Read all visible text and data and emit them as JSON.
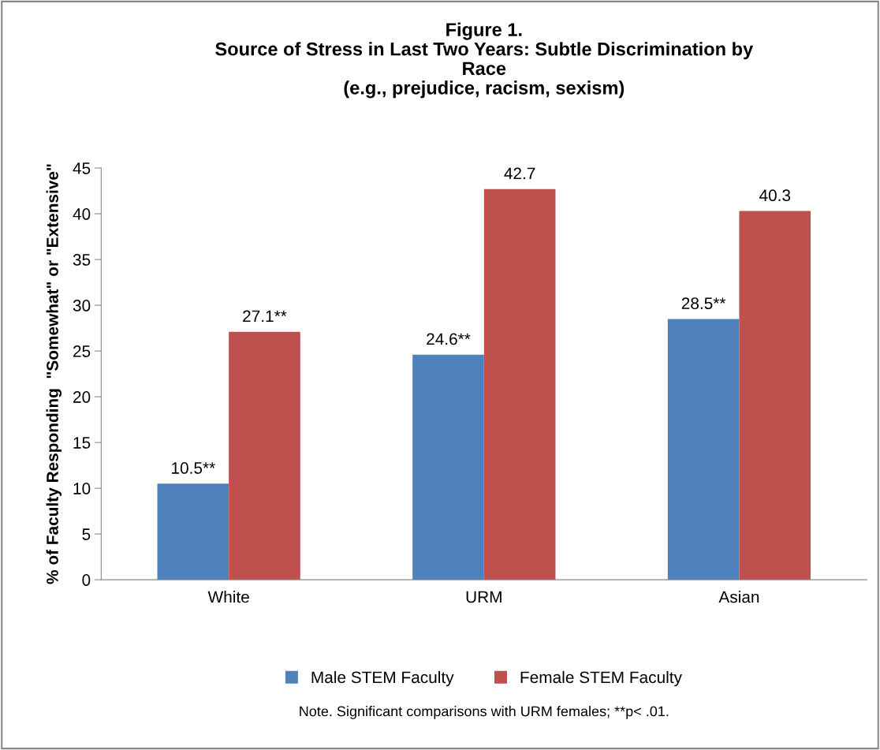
{
  "chart_data": {
    "type": "bar",
    "title": "Figure 1.\nSource of Stress in Last Two Years: Subtle Discrimination by\nRace\n(e.g., prejudice, racism, sexism)",
    "ylabel": "% of Faculty Responding  \"Somewhat\" or \"Extensive\"",
    "categories": [
      "White",
      "URM",
      "Asian"
    ],
    "series": [
      {
        "name": "Male STEM Faculty",
        "color": "#4f81bd",
        "values": [
          10.5,
          24.6,
          28.5
        ],
        "value_labels": [
          "10.5**",
          "24.6**",
          "28.5**"
        ]
      },
      {
        "name": "Female STEM Faculty",
        "color": "#c0504d",
        "values": [
          27.1,
          42.7,
          40.3
        ],
        "value_labels": [
          "27.1**",
          "42.7",
          "40.3"
        ]
      }
    ],
    "ylim": [
      0,
      45
    ],
    "yticks": [
      0,
      5,
      10,
      15,
      20,
      25,
      30,
      35,
      40,
      45
    ],
    "grid": false,
    "legend": "bottom",
    "annotations": [
      "Note. Significant comparisons with URM females; **p< .01."
    ]
  }
}
